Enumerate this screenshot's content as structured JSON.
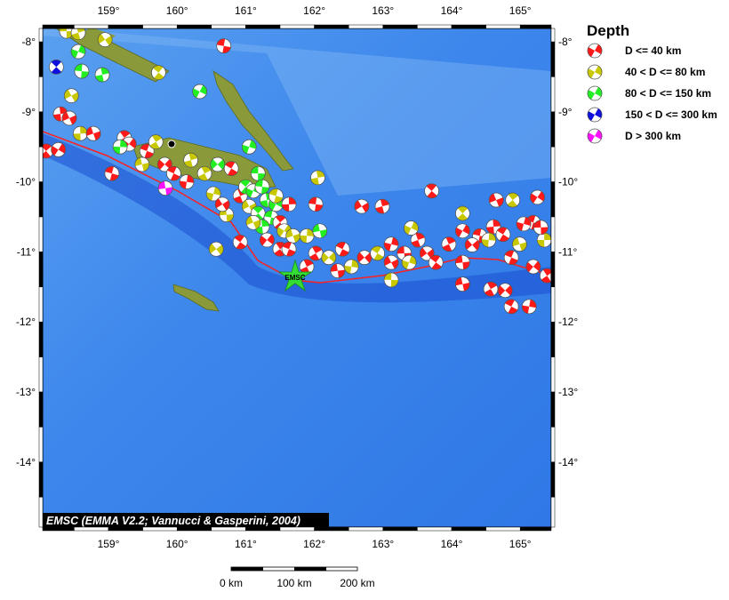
{
  "map": {
    "lon_range": [
      158.0,
      165.4
    ],
    "lat_range": [
      -14.9,
      -7.8
    ],
    "lon_ticks": [
      "159°",
      "160°",
      "161°",
      "162°",
      "163°",
      "164°",
      "165°"
    ],
    "lon_tick_values": [
      159,
      160,
      161,
      162,
      163,
      164,
      165
    ],
    "lat_ticks": [
      "-8°",
      "-9°",
      "-10°",
      "-11°",
      "-12°",
      "-13°",
      "-14°"
    ],
    "lat_tick_values": [
      -8,
      -9,
      -10,
      -11,
      -12,
      -13,
      -14
    ],
    "credit": "EMSC (EMMA V2.2; Vannucci & Gasperini, 2004)",
    "epicenter": {
      "label": "EMSC",
      "lon": 161.72,
      "lat": -11.36,
      "color": "#33dd33"
    },
    "city_marker": {
      "lon": 159.92,
      "lat": -9.46
    },
    "trench_color": "#ff2020"
  },
  "legend": {
    "title": "Depth",
    "items": [
      {
        "label": "D <= 40 km",
        "color": "#ff1a1a"
      },
      {
        "label": "40 < D <= 80 km",
        "color": "#c8c800"
      },
      {
        "label": "80 < D <= 150 km",
        "color": "#22ee22"
      },
      {
        "label": "150 < D <= 300 km",
        "color": "#1010dd"
      },
      {
        "label": "D > 300 km",
        "color": "#ff10ff"
      }
    ]
  },
  "scale_bar": {
    "labels": [
      "0 km",
      "100 km",
      "200 km"
    ]
  },
  "events": [
    [
      158.39,
      -7.85,
      1
    ],
    [
      158.56,
      -7.87,
      1
    ],
    [
      158.95,
      -7.97,
      1
    ],
    [
      159.73,
      -8.44,
      1
    ],
    [
      158.56,
      -8.14,
      2
    ],
    [
      158.61,
      -8.42,
      2
    ],
    [
      158.91,
      -8.47,
      2
    ],
    [
      158.46,
      -8.77,
      1
    ],
    [
      158.24,
      -8.36,
      3
    ],
    [
      160.33,
      -8.71,
      2
    ],
    [
      160.68,
      -8.06,
      0
    ],
    [
      158.3,
      -9.03,
      0
    ],
    [
      158.43,
      -9.09,
      0
    ],
    [
      158.09,
      -9.56,
      0
    ],
    [
      158.27,
      -9.54,
      0
    ],
    [
      159.05,
      -9.88,
      0
    ],
    [
      158.59,
      -9.31,
      1
    ],
    [
      158.78,
      -9.31,
      0
    ],
    [
      159.23,
      -9.37,
      0
    ],
    [
      159.3,
      -9.46,
      0
    ],
    [
      159.56,
      -9.56,
      0
    ],
    [
      159.17,
      -9.5,
      2
    ],
    [
      159.49,
      -9.75,
      1
    ],
    [
      159.69,
      -9.43,
      1
    ],
    [
      159.82,
      -9.75,
      0
    ],
    [
      159.95,
      -9.88,
      0
    ],
    [
      160.14,
      -10.0,
      0
    ],
    [
      159.83,
      -10.09,
      4
    ],
    [
      160.4,
      -9.88,
      1
    ],
    [
      160.59,
      -9.75,
      2
    ],
    [
      160.79,
      -9.81,
      0
    ],
    [
      160.53,
      -10.17,
      1
    ],
    [
      160.72,
      -10.47,
      1
    ],
    [
      160.92,
      -10.2,
      0
    ],
    [
      160.57,
      -10.96,
      1
    ],
    [
      160.92,
      -10.86,
      0
    ],
    [
      161.05,
      -9.5,
      2
    ],
    [
      161.18,
      -9.88,
      2
    ],
    [
      160.2,
      -9.69,
      1
    ],
    [
      160.66,
      -10.32,
      0
    ],
    [
      161.0,
      -10.07,
      2
    ],
    [
      161.11,
      -10.13,
      2
    ],
    [
      161.24,
      -10.07,
      2
    ],
    [
      161.31,
      -10.26,
      2
    ],
    [
      161.05,
      -10.35,
      1
    ],
    [
      161.18,
      -10.45,
      2
    ],
    [
      161.44,
      -10.32,
      2
    ],
    [
      161.37,
      -10.51,
      2
    ],
    [
      161.24,
      -10.64,
      2
    ],
    [
      161.11,
      -10.58,
      1
    ],
    [
      161.5,
      -10.58,
      0
    ],
    [
      161.56,
      -10.7,
      1
    ],
    [
      161.44,
      -10.2,
      1
    ],
    [
      161.63,
      -10.32,
      0
    ],
    [
      161.69,
      -10.77,
      1
    ],
    [
      161.5,
      -10.96,
      0
    ],
    [
      161.31,
      -10.83,
      0
    ],
    [
      161.63,
      -10.96,
      0
    ],
    [
      161.89,
      -10.77,
      1
    ],
    [
      162.08,
      -10.7,
      2
    ],
    [
      162.02,
      -11.02,
      0
    ],
    [
      162.21,
      -11.08,
      1
    ],
    [
      162.41,
      -10.96,
      0
    ],
    [
      162.54,
      -11.21,
      1
    ],
    [
      162.34,
      -11.27,
      0
    ],
    [
      161.89,
      -11.21,
      0
    ],
    [
      162.73,
      -11.08,
      0
    ],
    [
      162.92,
      -11.02,
      1
    ],
    [
      163.12,
      -10.89,
      0
    ],
    [
      163.31,
      -11.02,
      0
    ],
    [
      163.51,
      -10.83,
      0
    ],
    [
      163.64,
      -11.02,
      0
    ],
    [
      163.77,
      -11.15,
      0
    ],
    [
      163.38,
      -11.15,
      1
    ],
    [
      163.12,
      -11.4,
      1
    ],
    [
      162.99,
      -10.35,
      0
    ],
    [
      162.69,
      -10.35,
      0
    ],
    [
      163.71,
      -10.13,
      0
    ],
    [
      163.41,
      -10.66,
      1
    ],
    [
      162.02,
      -10.32,
      0
    ],
    [
      162.05,
      -9.94,
      1
    ],
    [
      163.12,
      -11.15,
      0
    ],
    [
      164.16,
      -10.45,
      1
    ],
    [
      164.16,
      -10.7,
      0
    ],
    [
      164.41,
      -10.77,
      0
    ],
    [
      164.61,
      -10.64,
      0
    ],
    [
      164.65,
      -10.26,
      0
    ],
    [
      164.89,
      -10.26,
      1
    ],
    [
      165.25,
      -10.22,
      0
    ],
    [
      165.19,
      -10.58,
      0
    ],
    [
      165.35,
      -10.83,
      1
    ],
    [
      164.99,
      -10.89,
      1
    ],
    [
      165.39,
      -11.34,
      0
    ],
    [
      165.19,
      -11.21,
      0
    ],
    [
      164.87,
      -11.08,
      0
    ],
    [
      164.54,
      -10.83,
      1
    ],
    [
      164.16,
      -11.46,
      0
    ],
    [
      164.57,
      -11.53,
      0
    ],
    [
      164.78,
      -11.55,
      0
    ],
    [
      164.87,
      -11.78,
      0
    ],
    [
      165.13,
      -11.78,
      0
    ],
    [
      164.16,
      -11.15,
      0
    ],
    [
      163.96,
      -10.89,
      0
    ],
    [
      164.3,
      -10.9,
      0
    ],
    [
      164.75,
      -10.75,
      0
    ],
    [
      165.05,
      -10.6,
      0
    ],
    [
      165.3,
      -10.65,
      0
    ]
  ]
}
